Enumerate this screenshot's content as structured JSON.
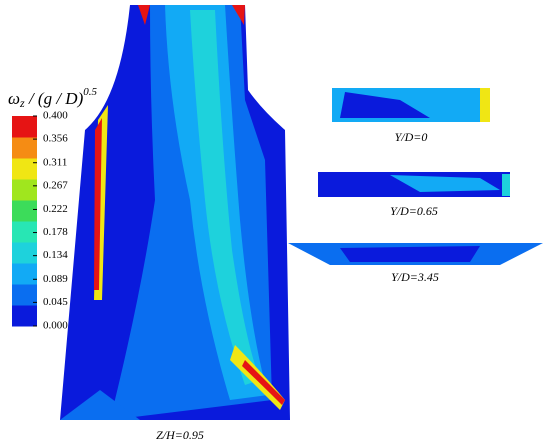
{
  "colorbar": {
    "title": {
      "symbol": "ω",
      "sub": "z",
      "mid": " / (g / D)",
      "sup": "0.5"
    },
    "range": [
      0,
      0.4
    ],
    "ticks": [
      {
        "value": 0,
        "label": "0.000"
      },
      {
        "value": 0.045,
        "label": "0.045"
      },
      {
        "value": 0.089,
        "label": "0.089"
      },
      {
        "value": 0.134,
        "label": "0.134"
      },
      {
        "value": 0.178,
        "label": "0.178"
      },
      {
        "value": 0.222,
        "label": "0.222"
      },
      {
        "value": 0.267,
        "label": "0.267"
      },
      {
        "value": 0.311,
        "label": "0.311"
      },
      {
        "value": 0.356,
        "label": "0.356"
      },
      {
        "value": 0.4,
        "label": "0.400"
      }
    ],
    "colors": [
      "#0a1adc",
      "#0a6ef0",
      "#12aaf5",
      "#1ed2dc",
      "#28e6b4",
      "#3cdc5a",
      "#a0e61e",
      "#f0e614",
      "#f58c14",
      "#e61414"
    ]
  },
  "panels": [
    {
      "label": "Z/H=0.95"
    },
    {
      "label": "Y/D=0"
    },
    {
      "label": "Y/D=0.65"
    },
    {
      "label": "Y/D=3.45"
    }
  ]
}
